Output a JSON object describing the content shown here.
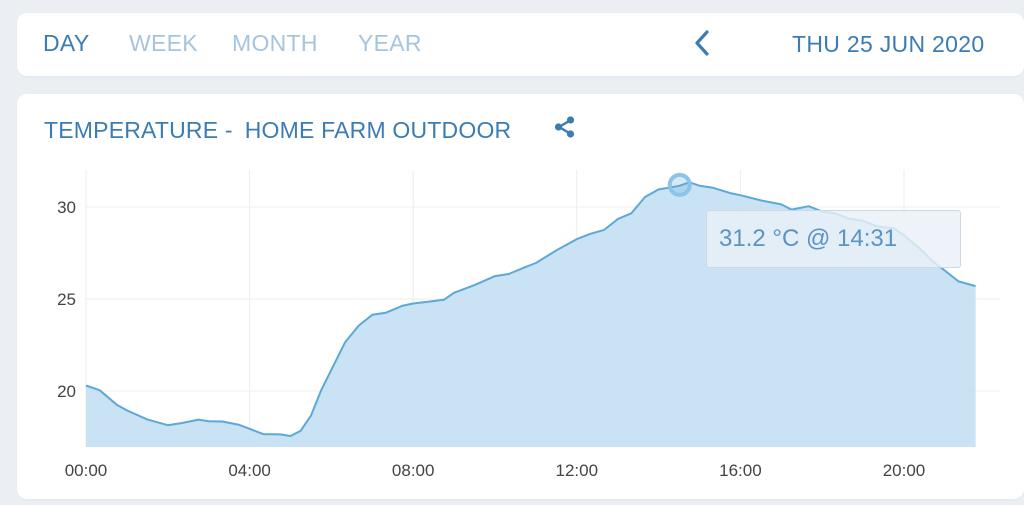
{
  "nav": {
    "tabs": [
      {
        "label": "DAY",
        "active": true
      },
      {
        "label": "WEEK",
        "active": false
      },
      {
        "label": "MONTH",
        "active": false
      },
      {
        "label": "YEAR",
        "active": false
      }
    ],
    "date": "THU 25 JUN 2020",
    "prev_icon": "chevron-left-icon"
  },
  "chart_header": {
    "metric": "TEMPERATURE -",
    "location": "HOME FARM OUTDOOR",
    "share_icon": "share-icon"
  },
  "tooltip": {
    "text": "31.2 °C @ 14:31"
  },
  "colors": {
    "accent": "#3b7cb3",
    "inactive_tab": "#a7c4de",
    "line": "#5ca8d8",
    "fill": "#c6e2f4"
  },
  "chart_data": {
    "type": "area",
    "xlabel": "",
    "ylabel": "",
    "x_ticks": [
      "00:00",
      "04:00",
      "08:00",
      "12:00",
      "16:00",
      "20:00"
    ],
    "y_ticks": [
      20,
      25,
      30
    ],
    "xlim": [
      "00:00",
      "24:00"
    ],
    "ylim": [
      17,
      32.5
    ],
    "grid": true,
    "highlight": {
      "x": "14:31",
      "y": 31.2
    },
    "series": [
      {
        "x": [
          "00:00",
          "00:20",
          "00:45",
          "01:00",
          "01:30",
          "02:00",
          "02:20",
          "02:45",
          "03:00",
          "03:20",
          "03:45",
          "04:00",
          "04:20",
          "04:45",
          "05:00",
          "05:15",
          "05:30",
          "05:45",
          "06:00",
          "06:20",
          "06:40",
          "07:00",
          "07:20",
          "07:45",
          "08:00",
          "08:20",
          "08:45",
          "09:00",
          "09:30",
          "10:00",
          "10:20",
          "10:45",
          "11:00",
          "11:30",
          "12:00",
          "12:20",
          "12:40",
          "13:00",
          "13:20",
          "13:40",
          "14:00",
          "14:15",
          "14:31",
          "14:45",
          "15:00",
          "15:20",
          "15:45",
          "16:00",
          "16:30",
          "17:00",
          "17:15",
          "17:40",
          "18:00",
          "18:20",
          "18:40",
          "19:00",
          "19:20",
          "19:45",
          "20:00",
          "20:20",
          "20:45",
          "21:00",
          "21:20",
          "21:45"
        ],
        "y": [
          20.3,
          20.0,
          19.3,
          18.9,
          18.5,
          18.1,
          18.3,
          18.4,
          18.4,
          18.3,
          18.2,
          17.9,
          17.7,
          17.6,
          17.6,
          17.8,
          18.7,
          20.0,
          21.2,
          22.6,
          23.6,
          24.1,
          24.3,
          24.6,
          24.8,
          24.8,
          25.0,
          25.3,
          25.8,
          26.2,
          26.4,
          26.7,
          27.0,
          27.6,
          28.3,
          28.5,
          28.8,
          29.3,
          29.7,
          30.5,
          31.0,
          31.0,
          31.2,
          31.3,
          31.2,
          31.0,
          30.8,
          30.6,
          30.4,
          30.1,
          29.9,
          30.0,
          29.8,
          29.6,
          29.4,
          29.2,
          29.0,
          28.8,
          28.5,
          27.8,
          27.0,
          26.5,
          26.0,
          25.7
        ]
      }
    ]
  }
}
